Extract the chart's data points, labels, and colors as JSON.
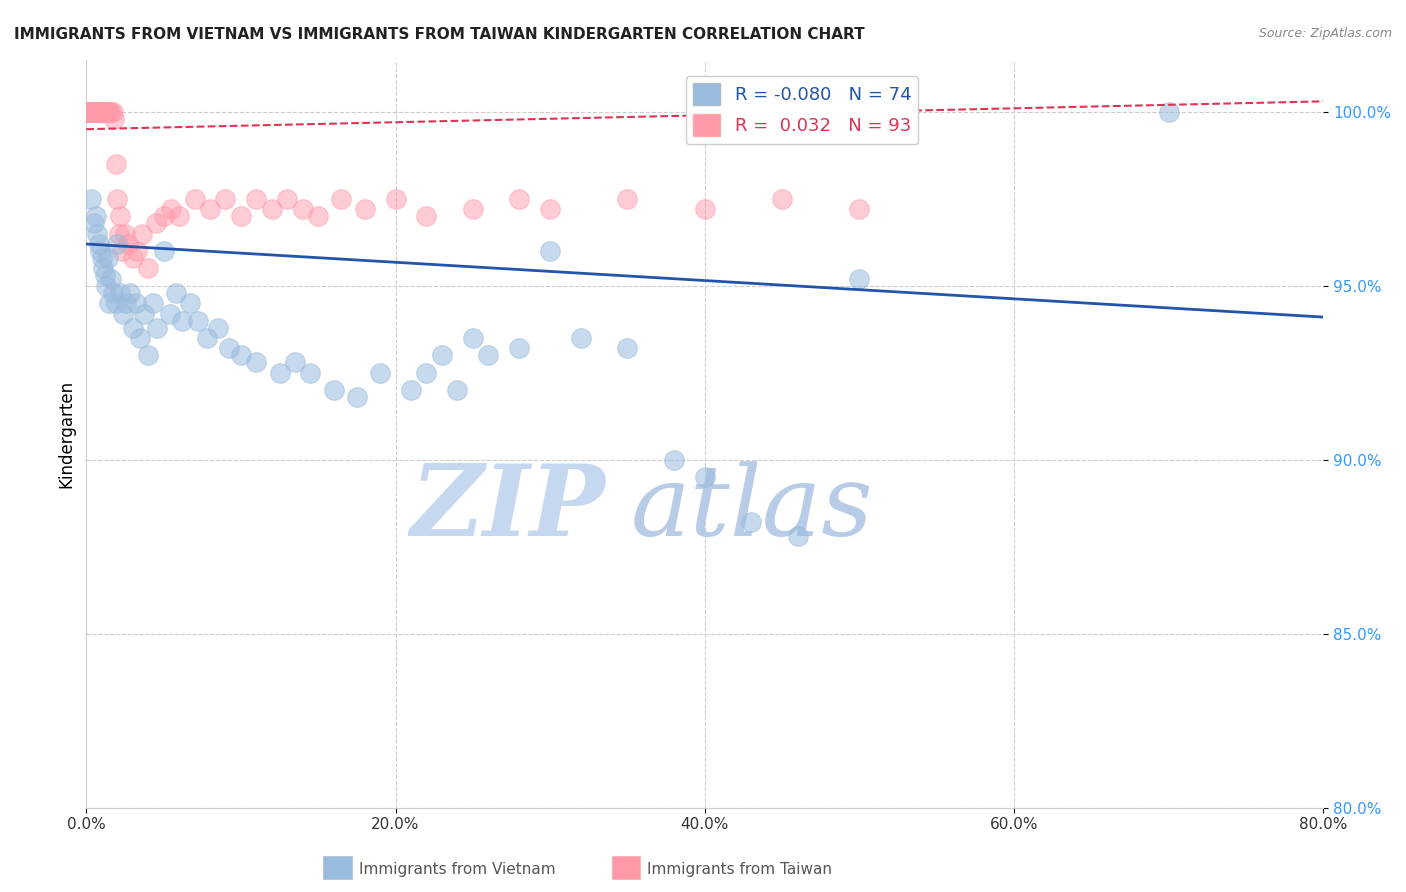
{
  "title": "IMMIGRANTS FROM VIETNAM VS IMMIGRANTS FROM TAIWAN KINDERGARTEN CORRELATION CHART",
  "source": "Source: ZipAtlas.com",
  "ylabel": "Kindergarten",
  "legend_blue_r": "-0.080",
  "legend_blue_n": "74",
  "legend_pink_r": "0.032",
  "legend_pink_n": "93",
  "legend_label_blue": "Immigrants from Vietnam",
  "legend_label_pink": "Immigrants from Taiwan",
  "xlim": [
    0.0,
    80.0
  ],
  "ylim": [
    80.0,
    101.5
  ],
  "yticks": [
    80.0,
    85.0,
    90.0,
    95.0,
    100.0
  ],
  "xticks": [
    0.0,
    20.0,
    40.0,
    60.0,
    80.0
  ],
  "blue_color": "#99BBDD",
  "pink_color": "#FF99AA",
  "blue_line_color": "#2255AA",
  "pink_line_color": "#DD3355",
  "watermark_zip": "ZIP",
  "watermark_atlas": "atlas",
  "watermark_color": "#C8DEFF",
  "blue_x": [
    0.3,
    0.5,
    0.6,
    0.7,
    0.8,
    0.9,
    1.0,
    1.1,
    1.2,
    1.3,
    1.4,
    1.5,
    1.6,
    1.7,
    1.9,
    2.0,
    2.2,
    2.4,
    2.6,
    2.8,
    3.0,
    3.2,
    3.5,
    3.7,
    4.0,
    4.3,
    4.6,
    5.0,
    5.4,
    5.8,
    6.2,
    6.7,
    7.2,
    7.8,
    8.5,
    9.2,
    10.0,
    11.0,
    12.5,
    13.5,
    14.5,
    16.0,
    17.5,
    19.0,
    21.0,
    22.0,
    23.0,
    24.0,
    25.0,
    26.0,
    28.0,
    30.0,
    32.0,
    35.0,
    38.0,
    40.0,
    43.0,
    46.0,
    50.0,
    70.0
  ],
  "blue_y": [
    97.5,
    96.8,
    97.0,
    96.5,
    96.2,
    96.0,
    95.8,
    95.5,
    95.3,
    95.0,
    95.8,
    94.5,
    95.2,
    94.8,
    94.5,
    96.2,
    94.8,
    94.2,
    94.5,
    94.8,
    93.8,
    94.5,
    93.5,
    94.2,
    93.0,
    94.5,
    93.8,
    96.0,
    94.2,
    94.8,
    94.0,
    94.5,
    94.0,
    93.5,
    93.8,
    93.2,
    93.0,
    92.8,
    92.5,
    92.8,
    92.5,
    92.0,
    91.8,
    92.5,
    92.0,
    92.5,
    93.0,
    92.0,
    93.5,
    93.0,
    93.2,
    96.0,
    93.5,
    93.2,
    90.0,
    89.5,
    88.2,
    87.8,
    95.2,
    100.0
  ],
  "pink_x": [
    0.05,
    0.08,
    0.1,
    0.12,
    0.15,
    0.18,
    0.2,
    0.22,
    0.25,
    0.28,
    0.3,
    0.32,
    0.35,
    0.38,
    0.4,
    0.42,
    0.45,
    0.48,
    0.5,
    0.55,
    0.6,
    0.65,
    0.7,
    0.75,
    0.8,
    0.85,
    0.9,
    0.95,
    1.0,
    1.05,
    1.1,
    1.15,
    1.2,
    1.25,
    1.3,
    1.4,
    1.5,
    1.6,
    1.7,
    1.8,
    1.9,
    2.0,
    2.1,
    2.2,
    2.3,
    2.5,
    2.7,
    3.0,
    3.3,
    3.6,
    4.0,
    4.5,
    5.0,
    5.5,
    6.0,
    7.0,
    8.0,
    9.0,
    10.0,
    11.0,
    12.0,
    13.0,
    14.0,
    15.0,
    16.5,
    18.0,
    20.0,
    22.0,
    25.0,
    28.0,
    30.0,
    35.0,
    40.0,
    45.0,
    50.0
  ],
  "pink_y": [
    100.0,
    100.0,
    100.0,
    100.0,
    100.0,
    100.0,
    100.0,
    100.0,
    100.0,
    100.0,
    100.0,
    100.0,
    100.0,
    100.0,
    100.0,
    100.0,
    100.0,
    100.0,
    100.0,
    100.0,
    100.0,
    100.0,
    100.0,
    100.0,
    100.0,
    100.0,
    100.0,
    100.0,
    100.0,
    100.0,
    100.0,
    100.0,
    100.0,
    100.0,
    100.0,
    100.0,
    100.0,
    100.0,
    100.0,
    99.8,
    98.5,
    97.5,
    96.5,
    97.0,
    96.0,
    96.5,
    96.2,
    95.8,
    96.0,
    96.5,
    95.5,
    96.8,
    97.0,
    97.2,
    97.0,
    97.5,
    97.2,
    97.5,
    97.0,
    97.5,
    97.2,
    97.5,
    97.2,
    97.0,
    97.5,
    97.2,
    97.5,
    97.0,
    97.2,
    97.5,
    97.2,
    97.5,
    97.2,
    97.5,
    97.2
  ],
  "blue_trend_x": [
    0.0,
    80.0
  ],
  "blue_trend_y": [
    96.2,
    94.1
  ],
  "pink_trend_x": [
    0.0,
    80.0
  ],
  "pink_trend_y": [
    99.5,
    100.3
  ]
}
